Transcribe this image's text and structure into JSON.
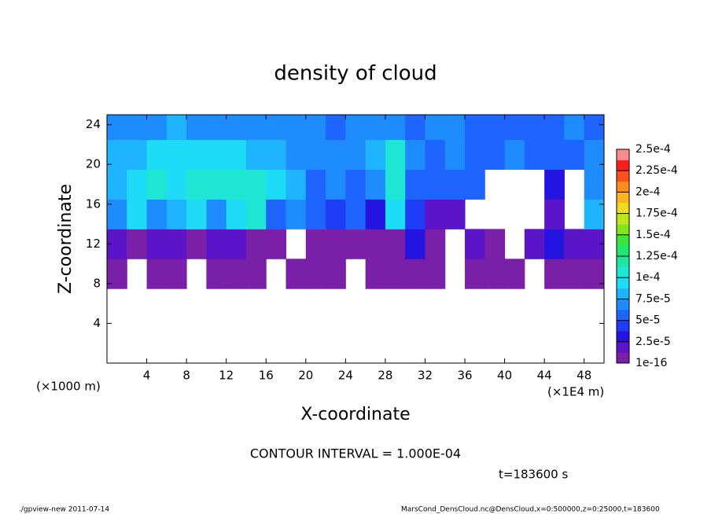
{
  "chart_data": {
    "type": "heatmap",
    "title": "density of cloud",
    "x_label": "X-coordinate",
    "y_label": "Z-coordinate",
    "x_unit_left": "(×1000 m)",
    "x_unit_right": "(×1E4 m)",
    "contour_note": "CONTOUR INTERVAL = 1.000E-04",
    "time_note": "t=183600 s",
    "footer_left": "./gpview-new  2011-07-14",
    "footer_right": "MarsCond_DensCloud.nc@DensCloud,x=0:500000,z=0:25000,t=183600",
    "xlim": [
      0,
      50
    ],
    "ylim": [
      0,
      25
    ],
    "xticks": [
      4,
      8,
      12,
      16,
      20,
      24,
      28,
      32,
      36,
      40,
      44,
      48
    ],
    "yticks": [
      4,
      8,
      12,
      16,
      20,
      24
    ],
    "x_edges": [
      0,
      2,
      4,
      6,
      8,
      10,
      12,
      14,
      16,
      18,
      20,
      22,
      24,
      26,
      28,
      30,
      32,
      34,
      36,
      38,
      40,
      42,
      44,
      46,
      48,
      50
    ],
    "z_edges": [
      7.5,
      10.5,
      13.5,
      16.5,
      19.5,
      22.5,
      25
    ],
    "values": [
      [
        1e-05,
        null,
        1e-05,
        1e-05,
        null,
        1e-05,
        1e-05,
        1e-05,
        null,
        1e-05,
        1e-05,
        1e-05,
        null,
        1e-05,
        1e-05,
        1e-05,
        1e-05,
        null,
        1e-05,
        1e-05,
        1e-05,
        null,
        1e-05,
        1e-05,
        1e-05
      ],
      [
        2e-05,
        1e-05,
        2e-05,
        2e-05,
        1e-05,
        2e-05,
        2e-05,
        1e-05,
        1e-05,
        null,
        1e-05,
        1e-05,
        1e-05,
        1e-05,
        1e-05,
        3e-05,
        1e-05,
        null,
        2e-05,
        1e-05,
        null,
        2e-05,
        3e-05,
        2e-05,
        2e-05
      ],
      [
        7e-05,
        9e-05,
        7e-05,
        8e-05,
        9e-05,
        7e-05,
        9e-05,
        0.0001,
        6e-05,
        7e-05,
        5e-05,
        4e-05,
        5e-05,
        3e-05,
        9e-05,
        4e-05,
        2e-05,
        2e-05,
        null,
        null,
        null,
        null,
        2e-05,
        null,
        8e-05
      ],
      [
        8e-05,
        9e-05,
        0.0001,
        9e-05,
        0.0001,
        0.00011,
        0.00011,
        0.00011,
        9e-05,
        8e-05,
        6e-05,
        7e-05,
        5e-05,
        7e-05,
        0.00011,
        6e-05,
        5e-05,
        5e-05,
        6e-05,
        null,
        null,
        null,
        3e-05,
        null,
        7e-05
      ],
      [
        8e-05,
        8e-05,
        9e-05,
        9e-05,
        9e-05,
        9e-05,
        9e-05,
        8e-05,
        8e-05,
        7e-05,
        7e-05,
        7e-05,
        7e-05,
        8e-05,
        0.0001,
        7e-05,
        6e-05,
        7e-05,
        6e-05,
        5e-05,
        7e-05,
        6e-05,
        5e-05,
        6e-05,
        7e-05
      ],
      [
        7e-05,
        7e-05,
        7e-05,
        8e-05,
        7e-05,
        7e-05,
        7e-05,
        7e-05,
        7e-05,
        7e-05,
        7e-05,
        6e-05,
        7e-05,
        7e-05,
        7e-05,
        6e-05,
        7e-05,
        7e-05,
        6e-05,
        6e-05,
        6e-05,
        6e-05,
        6e-05,
        7e-05,
        6e-05
      ]
    ],
    "colorbar_ticks": [
      {
        "value": 1e-16,
        "label": "1e-16"
      },
      {
        "value": 2.5e-05,
        "label": "2.5e-5"
      },
      {
        "value": 5e-05,
        "label": "5e-5"
      },
      {
        "value": 7.5e-05,
        "label": "7.5e-5"
      },
      {
        "value": 0.0001,
        "label": "1e-4"
      },
      {
        "value": 0.000125,
        "label": "1.25e-4"
      },
      {
        "value": 0.00015,
        "label": "1.5e-4"
      },
      {
        "value": 0.000175,
        "label": "1.75e-4"
      },
      {
        "value": 0.0002,
        "label": "2e-4"
      },
      {
        "value": 0.000225,
        "label": "2.25e-4"
      },
      {
        "value": 0.00025,
        "label": "2.5e-4"
      }
    ],
    "colors": [
      "#7a1fa8",
      "#5c14c8",
      "#2414e0",
      "#1e3cf5",
      "#1e64ff",
      "#1e8cff",
      "#1eb4ff",
      "#1edcf8",
      "#1ee6d2",
      "#1ee6a0",
      "#1ee66e",
      "#3ce63c",
      "#82e61e",
      "#bee61e",
      "#f0dc1e",
      "#ffb41e",
      "#ff8c1e",
      "#ff501e",
      "#ff1e1e",
      "#ff8c8c"
    ]
  }
}
